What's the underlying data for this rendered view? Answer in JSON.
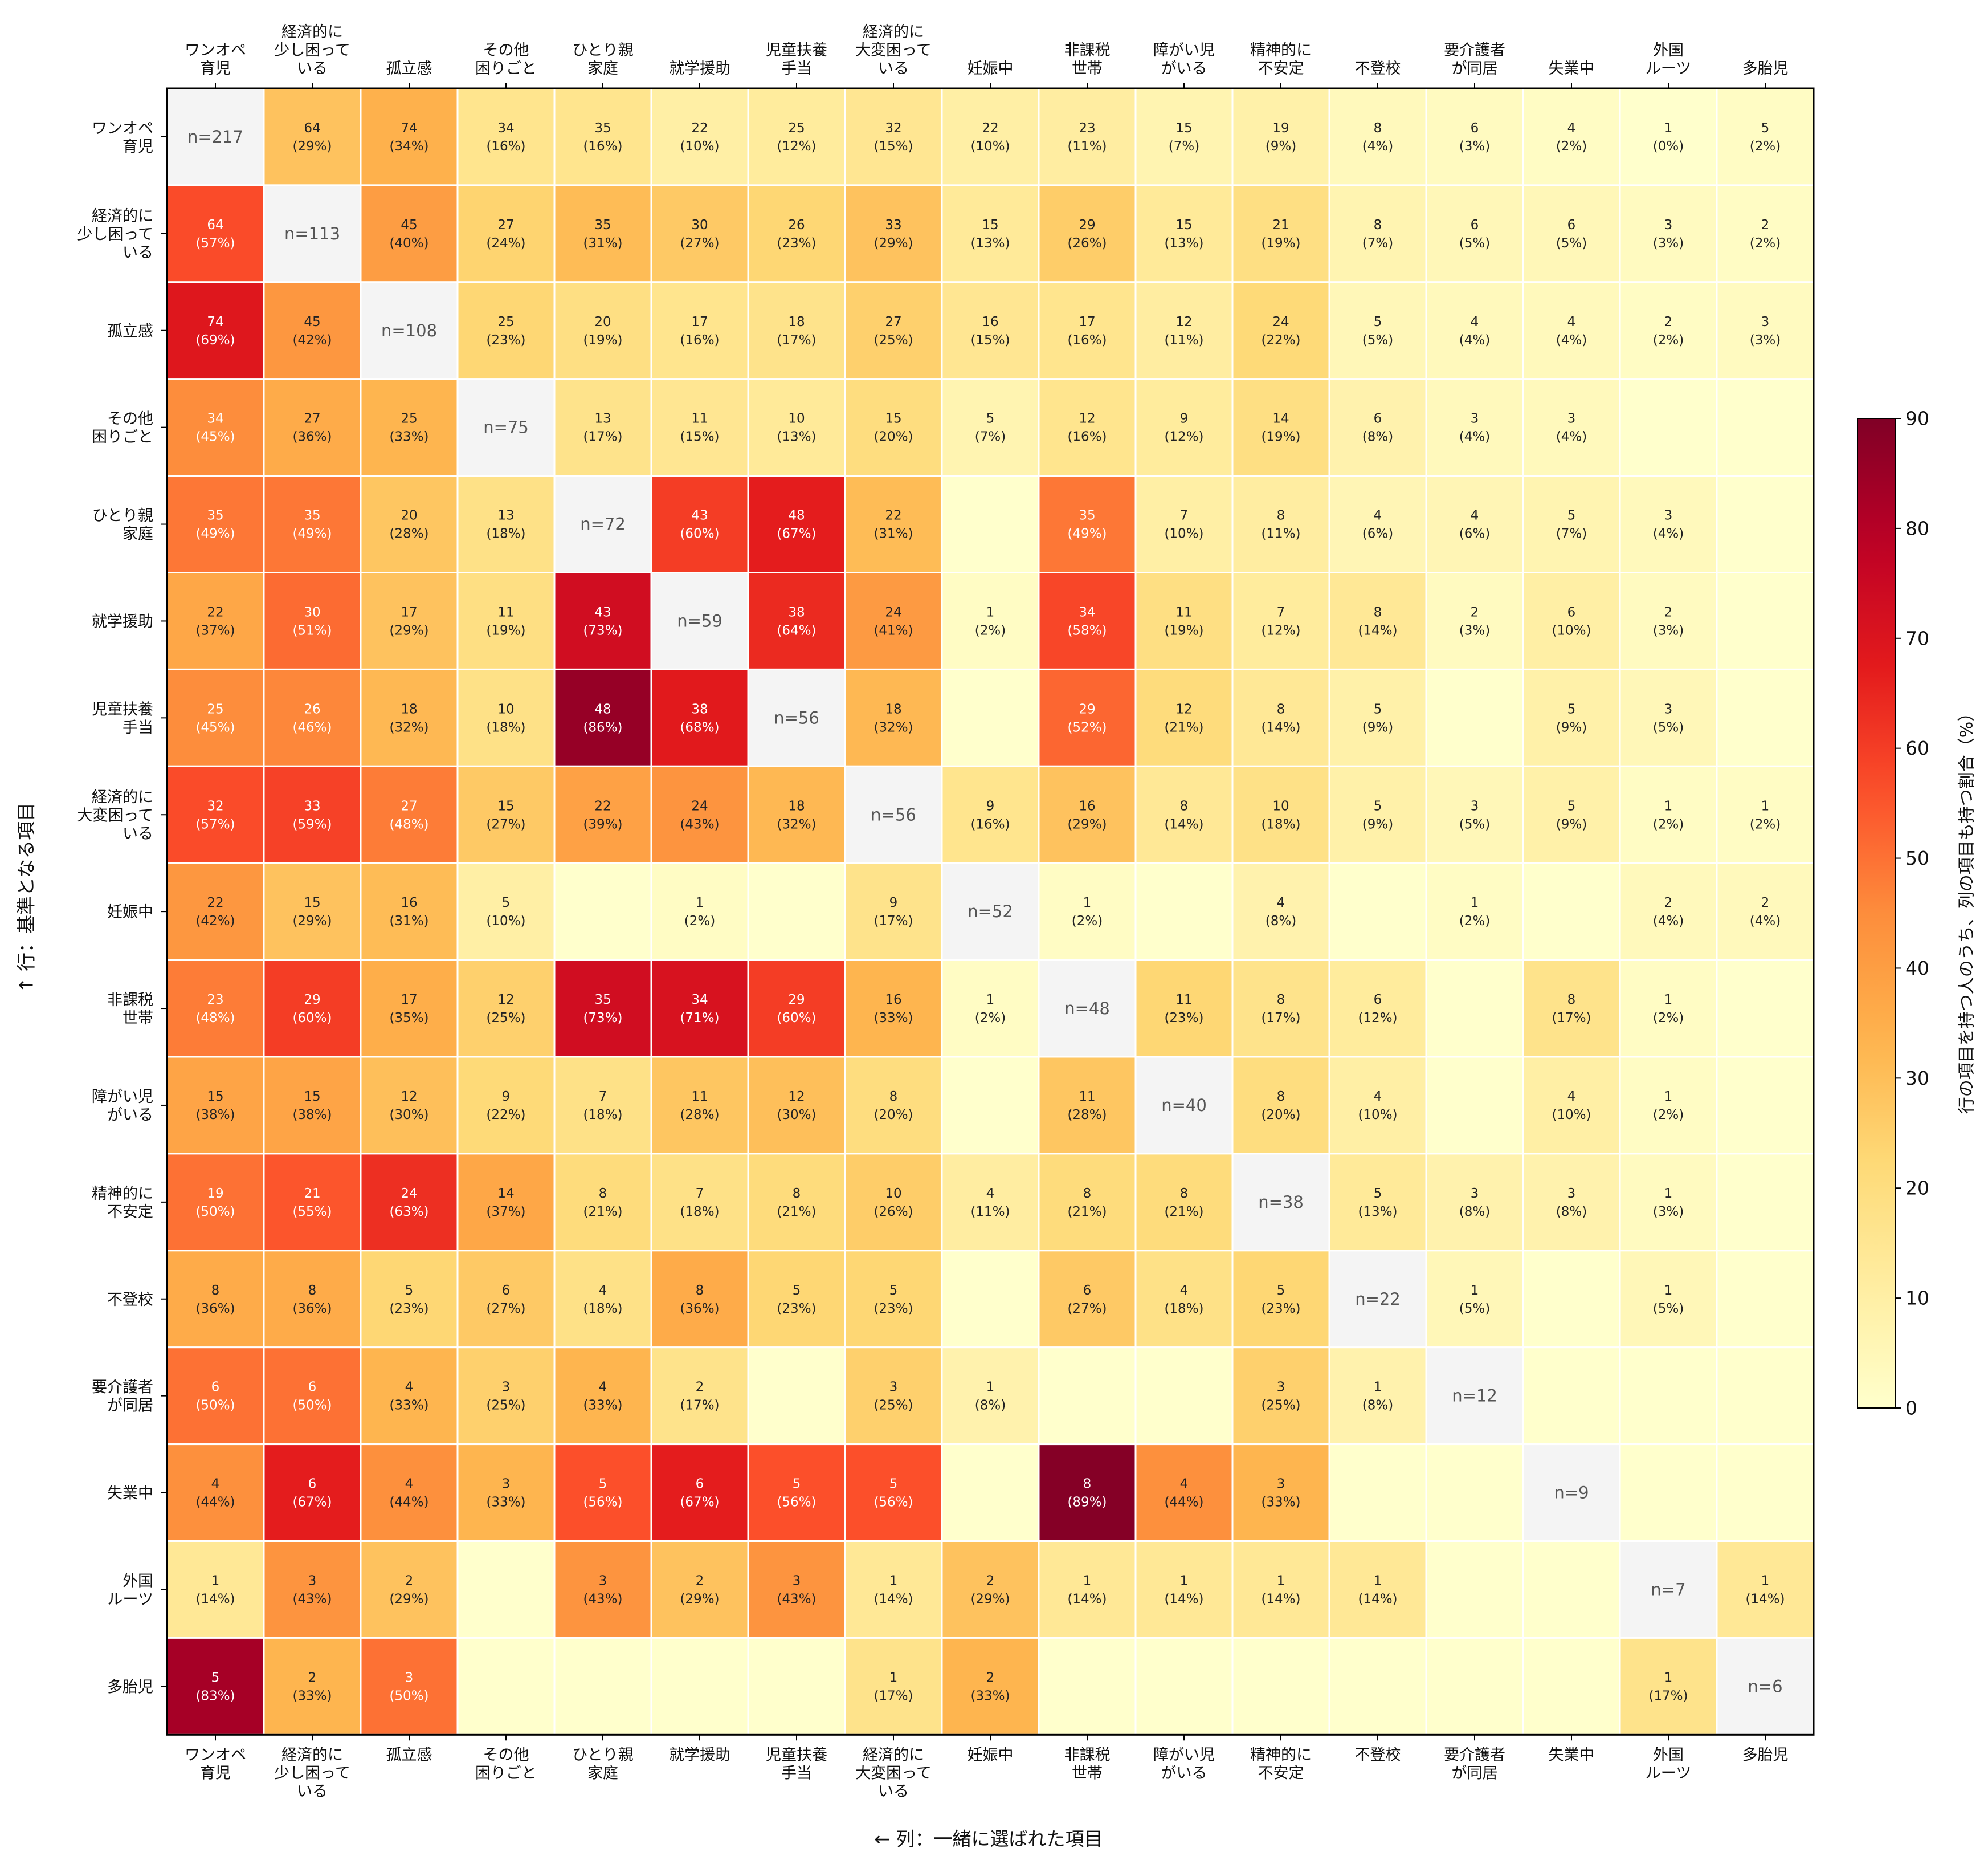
{
  "chart_data": {
    "type": "heatmap",
    "row_axis_label": "↑ 行：基準となる項目",
    "col_axis_label": "← 列：一緒に選ばれた項目",
    "colorbar_label": "行の項目を持つ人のうち、列の項目も持つ割合（%）",
    "colorbar_range": [
      0,
      90
    ],
    "colorbar_ticks": [
      "0",
      "10",
      "20",
      "30",
      "40",
      "50",
      "60",
      "70",
      "80",
      "90"
    ],
    "colormap": "YlOrRd",
    "labels": [
      [
        "ワンオペ",
        "育児"
      ],
      [
        "経済的に",
        "少し困って",
        "いる"
      ],
      [
        "孤立感"
      ],
      [
        "その他",
        "困りごと"
      ],
      [
        "ひとり親",
        "家庭"
      ],
      [
        "就学援助"
      ],
      [
        "児童扶養",
        "手当"
      ],
      [
        "経済的に",
        "大変困って",
        "いる"
      ],
      [
        "妊娠中"
      ],
      [
        "非課税",
        "世帯"
      ],
      [
        "障がい児",
        "がいる"
      ],
      [
        "精神的に",
        "不安定"
      ],
      [
        "不登校"
      ],
      [
        "要介護者",
        "が同居"
      ],
      [
        "失業中"
      ],
      [
        "外国",
        "ルーツ"
      ],
      [
        "多胎児"
      ]
    ],
    "diagonal": [
      "n=217",
      "n=113",
      "n=108",
      "n=75",
      "n=72",
      "n=59",
      "n=56",
      "n=56",
      "n=52",
      "n=48",
      "n=40",
      "n=38",
      "n=22",
      "n=12",
      "n=9",
      "n=7",
      "n=6"
    ],
    "counts": [
      [
        null,
        64,
        74,
        34,
        35,
        22,
        25,
        32,
        22,
        23,
        15,
        19,
        8,
        6,
        4,
        1,
        5
      ],
      [
        64,
        null,
        45,
        27,
        35,
        30,
        26,
        33,
        15,
        29,
        15,
        21,
        8,
        6,
        6,
        3,
        2
      ],
      [
        74,
        45,
        null,
        25,
        20,
        17,
        18,
        27,
        16,
        17,
        12,
        24,
        5,
        4,
        4,
        2,
        3
      ],
      [
        34,
        27,
        25,
        null,
        13,
        11,
        10,
        15,
        5,
        12,
        9,
        14,
        6,
        3,
        3,
        0,
        0
      ],
      [
        35,
        35,
        20,
        13,
        null,
        43,
        48,
        22,
        0,
        35,
        7,
        8,
        4,
        4,
        5,
        3,
        0
      ],
      [
        22,
        30,
        17,
        11,
        43,
        null,
        38,
        24,
        1,
        34,
        11,
        7,
        8,
        2,
        6,
        2,
        0
      ],
      [
        25,
        26,
        18,
        10,
        48,
        38,
        null,
        18,
        0,
        29,
        12,
        8,
        5,
        0,
        5,
        3,
        0
      ],
      [
        32,
        33,
        27,
        15,
        22,
        24,
        18,
        null,
        9,
        16,
        8,
        10,
        5,
        3,
        5,
        1,
        1
      ],
      [
        22,
        15,
        16,
        5,
        0,
        1,
        0,
        9,
        null,
        1,
        0,
        4,
        0,
        1,
        0,
        2,
        2
      ],
      [
        23,
        29,
        17,
        12,
        35,
        34,
        29,
        16,
        1,
        null,
        11,
        8,
        6,
        0,
        8,
        1,
        0
      ],
      [
        15,
        15,
        12,
        9,
        7,
        11,
        12,
        8,
        0,
        11,
        null,
        8,
        4,
        0,
        4,
        1,
        0
      ],
      [
        19,
        21,
        24,
        14,
        8,
        7,
        8,
        10,
        4,
        8,
        8,
        null,
        5,
        3,
        3,
        1,
        0
      ],
      [
        8,
        8,
        5,
        6,
        4,
        8,
        5,
        5,
        0,
        6,
        4,
        5,
        null,
        1,
        0,
        1,
        0
      ],
      [
        6,
        6,
        4,
        3,
        4,
        2,
        0,
        3,
        1,
        0,
        0,
        3,
        1,
        null,
        0,
        0,
        0
      ],
      [
        4,
        6,
        4,
        3,
        5,
        6,
        5,
        5,
        0,
        8,
        4,
        3,
        0,
        0,
        null,
        0,
        0
      ],
      [
        1,
        3,
        2,
        0,
        3,
        2,
        3,
        1,
        2,
        1,
        1,
        1,
        1,
        0,
        0,
        null,
        1
      ],
      [
        5,
        2,
        3,
        0,
        0,
        0,
        0,
        1,
        2,
        0,
        0,
        0,
        0,
        0,
        0,
        1,
        null
      ]
    ],
    "percents": [
      [
        null,
        29,
        34,
        16,
        16,
        10,
        12,
        15,
        10,
        11,
        7,
        9,
        4,
        3,
        2,
        0,
        2
      ],
      [
        57,
        null,
        40,
        24,
        31,
        27,
        23,
        29,
        13,
        26,
        13,
        19,
        7,
        5,
        5,
        3,
        2
      ],
      [
        69,
        42,
        null,
        23,
        19,
        16,
        17,
        25,
        15,
        16,
        11,
        22,
        5,
        4,
        4,
        2,
        3
      ],
      [
        45,
        36,
        33,
        null,
        17,
        15,
        13,
        20,
        7,
        16,
        12,
        19,
        8,
        4,
        4,
        0,
        0
      ],
      [
        49,
        49,
        28,
        18,
        null,
        60,
        67,
        31,
        0,
        49,
        10,
        11,
        6,
        6,
        7,
        4,
        0
      ],
      [
        37,
        51,
        29,
        19,
        73,
        null,
        64,
        41,
        2,
        58,
        19,
        12,
        14,
        3,
        10,
        3,
        0
      ],
      [
        45,
        46,
        32,
        18,
        86,
        68,
        null,
        32,
        0,
        52,
        21,
        14,
        9,
        0,
        9,
        5,
        0
      ],
      [
        57,
        59,
        48,
        27,
        39,
        43,
        32,
        null,
        16,
        29,
        14,
        18,
        9,
        5,
        9,
        2,
        2
      ],
      [
        42,
        29,
        31,
        10,
        0,
        2,
        0,
        17,
        null,
        2,
        0,
        8,
        0,
        2,
        0,
        4,
        4
      ],
      [
        48,
        60,
        35,
        25,
        73,
        71,
        60,
        33,
        2,
        null,
        23,
        17,
        12,
        0,
        17,
        2,
        0
      ],
      [
        38,
        38,
        30,
        22,
        18,
        28,
        30,
        20,
        0,
        28,
        null,
        20,
        10,
        0,
        10,
        2,
        0
      ],
      [
        50,
        55,
        63,
        37,
        21,
        18,
        21,
        26,
        11,
        21,
        21,
        null,
        13,
        8,
        8,
        3,
        0
      ],
      [
        36,
        36,
        23,
        27,
        18,
        36,
        23,
        23,
        0,
        27,
        18,
        23,
        null,
        5,
        0,
        5,
        0
      ],
      [
        50,
        50,
        33,
        25,
        33,
        17,
        0,
        25,
        8,
        0,
        0,
        25,
        8,
        null,
        0,
        0,
        0
      ],
      [
        44,
        67,
        44,
        33,
        56,
        67,
        56,
        56,
        0,
        89,
        44,
        33,
        0,
        0,
        null,
        0,
        0
      ],
      [
        14,
        43,
        29,
        0,
        43,
        29,
        43,
        14,
        29,
        14,
        14,
        14,
        14,
        0,
        0,
        null,
        14
      ],
      [
        83,
        33,
        50,
        0,
        0,
        0,
        0,
        17,
        33,
        0,
        0,
        0,
        0,
        0,
        0,
        17,
        null
      ]
    ]
  }
}
